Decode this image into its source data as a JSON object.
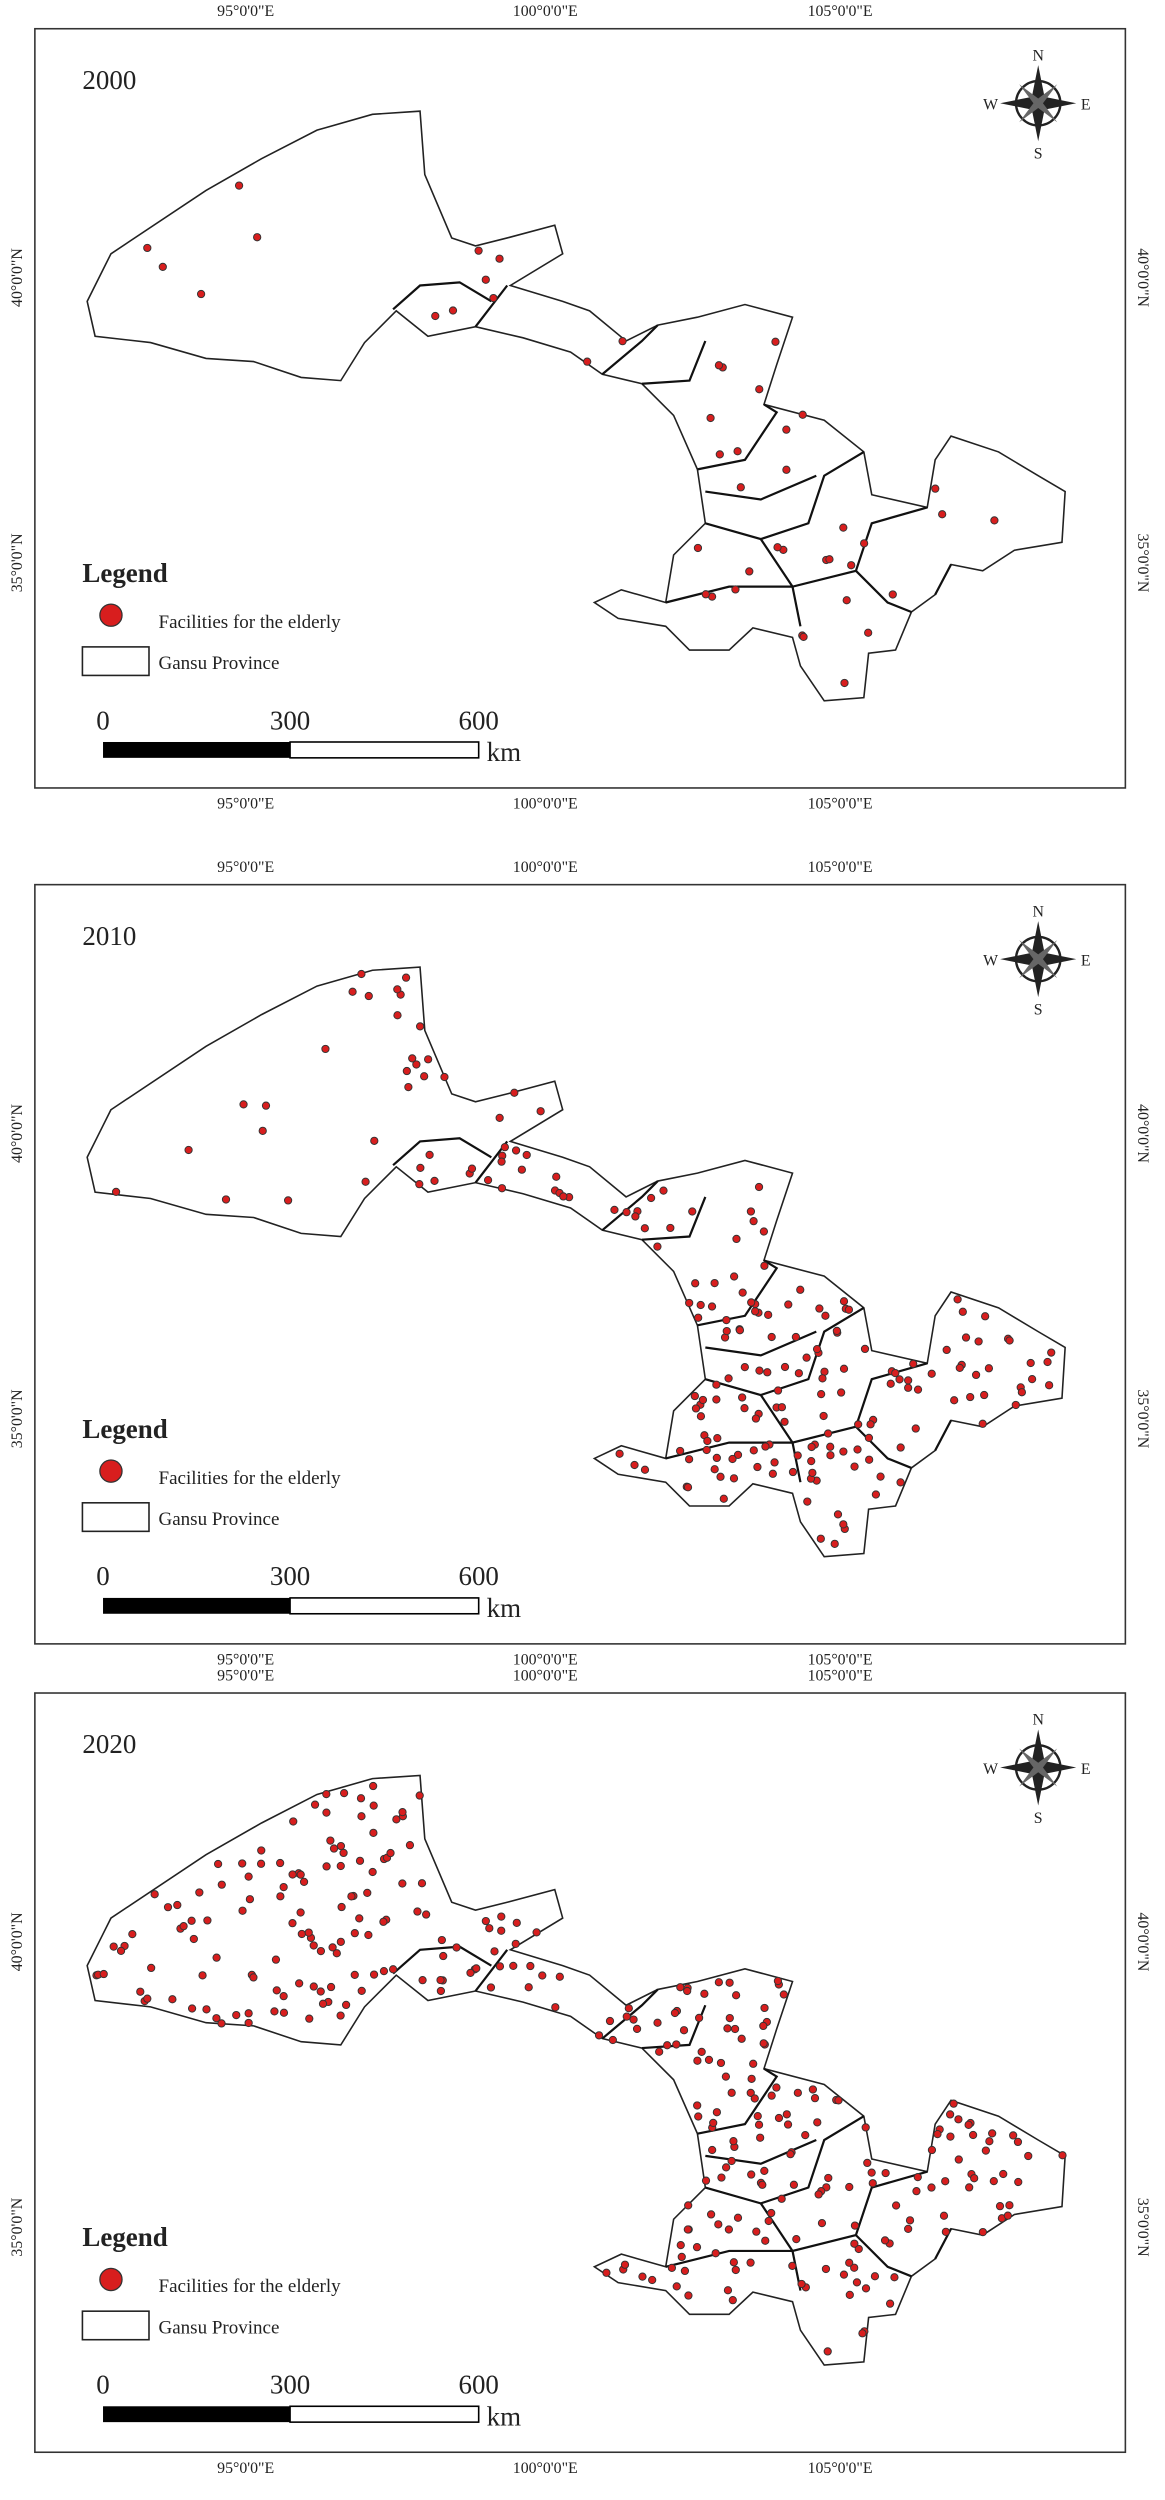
{
  "panels": [
    {
      "year": "2000",
      "legend": {
        "title": "Legend",
        "items": [
          "Facilities for the elderly",
          "Gansu Province"
        ]
      },
      "scale_bar": {
        "labels": [
          "0",
          "300",
          "600"
        ],
        "unit": "km"
      },
      "longitude_labels": [
        "95°0'0\"E",
        "100°0'0\"E",
        "105°0'0\"E"
      ],
      "latitude_labels": [
        "40°0'0\"N",
        "35°0'0\"N"
      ],
      "compass": {
        "north": "N",
        "south": "S",
        "west": "W",
        "east": "E"
      }
    },
    {
      "year": "2010",
      "legend": {
        "title": "Legend",
        "items": [
          "Facilities for the elderly",
          "Gansu Province"
        ]
      },
      "scale_bar": {
        "labels": [
          "0",
          "300",
          "600"
        ],
        "unit": "km"
      },
      "longitude_labels": [
        "95°0'0\"E",
        "100°0'0\"E",
        "105°0'0\"E"
      ],
      "latitude_labels": [
        "40°0'0\"N",
        "35°0'0\"N"
      ],
      "compass": {
        "north": "N",
        "south": "S",
        "west": "W",
        "east": "E"
      }
    },
    {
      "year": "2020",
      "legend": {
        "title": "Legend",
        "items": [
          "Facilities for the elderly",
          "Gansu Province"
        ]
      },
      "scale_bar": {
        "labels": [
          "0",
          "300",
          "600"
        ],
        "unit": "km"
      },
      "longitude_labels": [
        "95°0'0\"E",
        "100°0'0\"E",
        "105°0'0\"E"
      ],
      "latitude_labels": [
        "40°0'0\"N",
        "35°0'0\"N"
      ],
      "compass": {
        "north": "N",
        "south": "S",
        "west": "W",
        "east": "E"
      }
    }
  ]
}
